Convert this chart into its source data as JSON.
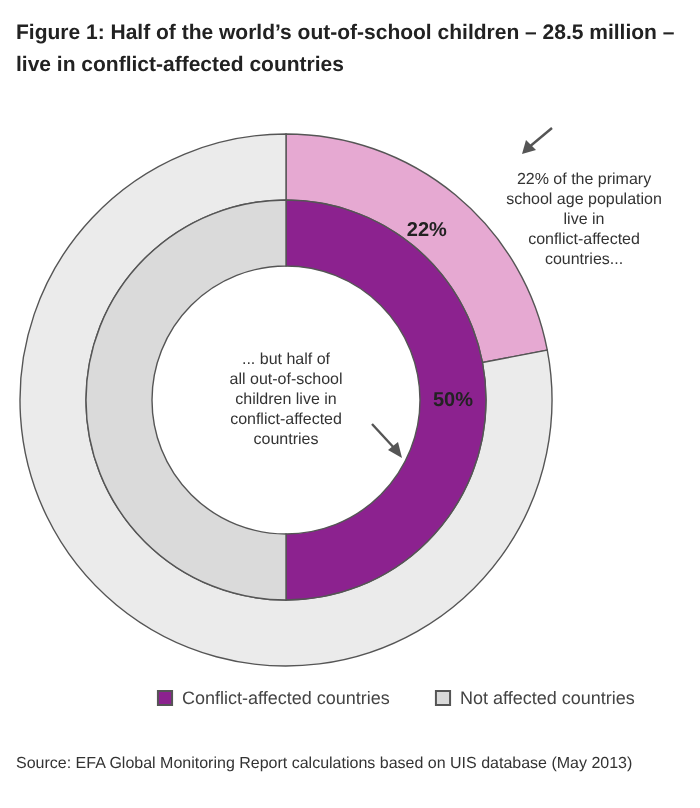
{
  "chart_data": {
    "type": "donut",
    "title": "Figure 1: Half of the world’s out-of-school children – 28.5 million – live in conflict-affected countries",
    "categories": [
      "Conflict-affected countries",
      "Not affected countries"
    ],
    "series": [
      {
        "colors": [
          "#e6a9d2",
          "#ebebeb"
        ],
        "values": [
          22,
          78
        ],
        "value_labels": [
          "22%",
          null
        ]
      },
      {
        "colors": [
          "#8c228f",
          "#dadada"
        ],
        "values": [
          50,
          50
        ],
        "value_labels": [
          "50%",
          null
        ]
      }
    ],
    "legend": "bottom",
    "annotations": [
      "22% of the primary school age population live in conflict-affected countries...",
      "... but half of all out-of-school children live in conflict-affected countries",
      "Source: EFA Global Monitoring Report calculations based on UIS database (May 2013)"
    ]
  }
}
